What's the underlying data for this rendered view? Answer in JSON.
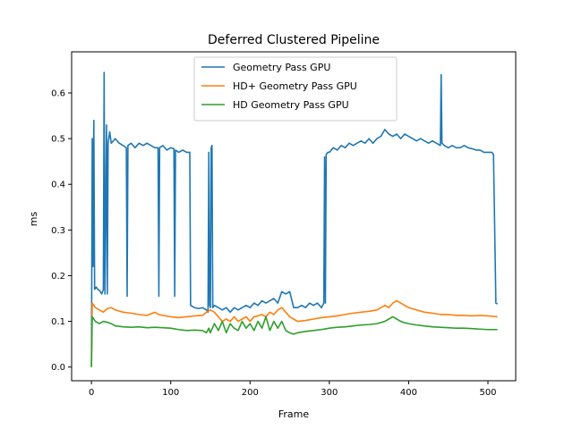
{
  "chart_data": {
    "type": "line",
    "title": "Deferred Clustered Pipeline",
    "xlabel": "Frame",
    "ylabel": "ms",
    "xlim": [
      -25,
      535
    ],
    "ylim": [
      -0.03,
      0.69
    ],
    "xticks": [
      0,
      100,
      200,
      300,
      400,
      500
    ],
    "yticks": [
      0.0,
      0.1,
      0.2,
      0.3,
      0.4,
      0.5,
      0.6
    ],
    "ytick_labels": [
      "0.0",
      "0.1",
      "0.2",
      "0.3",
      "0.4",
      "0.5",
      "0.6"
    ],
    "grid": false,
    "legend_position": "upper-center",
    "series": [
      {
        "name": "Geometry Pass GPU",
        "color": "#1f77b4",
        "points": [
          [
            0,
            0.0
          ],
          [
            1,
            0.5
          ],
          [
            2,
            0.22
          ],
          [
            3,
            0.54
          ],
          [
            4,
            0.17
          ],
          [
            6,
            0.175
          ],
          [
            8,
            0.17
          ],
          [
            10,
            0.168
          ],
          [
            13,
            0.16
          ],
          [
            15,
            0.17
          ],
          [
            16,
            0.645
          ],
          [
            17,
            0.16
          ],
          [
            19,
            0.53
          ],
          [
            20,
            0.16
          ],
          [
            21,
            0.49
          ],
          [
            23,
            0.515
          ],
          [
            25,
            0.49
          ],
          [
            30,
            0.5
          ],
          [
            35,
            0.49
          ],
          [
            40,
            0.485
          ],
          [
            44,
            0.48
          ],
          [
            45,
            0.155
          ],
          [
            46,
            0.485
          ],
          [
            50,
            0.49
          ],
          [
            55,
            0.48
          ],
          [
            60,
            0.49
          ],
          [
            65,
            0.485
          ],
          [
            70,
            0.49
          ],
          [
            75,
            0.485
          ],
          [
            80,
            0.48
          ],
          [
            84,
            0.48
          ],
          [
            85,
            0.155
          ],
          [
            86,
            0.48
          ],
          [
            90,
            0.485
          ],
          [
            95,
            0.475
          ],
          [
            100,
            0.48
          ],
          [
            104,
            0.478
          ],
          [
            105,
            0.155
          ],
          [
            106,
            0.475
          ],
          [
            110,
            0.47
          ],
          [
            115,
            0.475
          ],
          [
            120,
            0.47
          ],
          [
            124,
            0.47
          ],
          [
            125,
            0.135
          ],
          [
            130,
            0.13
          ],
          [
            135,
            0.128
          ],
          [
            140,
            0.13
          ],
          [
            145,
            0.125
          ],
          [
            147,
            0.12
          ],
          [
            148,
            0.47
          ],
          [
            149,
            0.135
          ],
          [
            150,
            0.13
          ],
          [
            151,
            0.48
          ],
          [
            152,
            0.485
          ],
          [
            153,
            0.13
          ],
          [
            155,
            0.135
          ],
          [
            160,
            0.13
          ],
          [
            165,
            0.125
          ],
          [
            170,
            0.13
          ],
          [
            175,
            0.12
          ],
          [
            180,
            0.13
          ],
          [
            185,
            0.125
          ],
          [
            190,
            0.13
          ],
          [
            195,
            0.135
          ],
          [
            200,
            0.13
          ],
          [
            205,
            0.14
          ],
          [
            210,
            0.135
          ],
          [
            215,
            0.145
          ],
          [
            220,
            0.14
          ],
          [
            225,
            0.145
          ],
          [
            230,
            0.15
          ],
          [
            235,
            0.14
          ],
          [
            240,
            0.165
          ],
          [
            245,
            0.16
          ],
          [
            250,
            0.165
          ],
          [
            255,
            0.13
          ],
          [
            260,
            0.13
          ],
          [
            265,
            0.135
          ],
          [
            270,
            0.13
          ],
          [
            275,
            0.14
          ],
          [
            280,
            0.135
          ],
          [
            285,
            0.14
          ],
          [
            290,
            0.13
          ],
          [
            293,
            0.14
          ],
          [
            294,
            0.46
          ],
          [
            295,
            0.14
          ],
          [
            296,
            0.465
          ],
          [
            298,
            0.47
          ],
          [
            300,
            0.47
          ],
          [
            305,
            0.48
          ],
          [
            310,
            0.475
          ],
          [
            315,
            0.485
          ],
          [
            320,
            0.48
          ],
          [
            325,
            0.49
          ],
          [
            330,
            0.485
          ],
          [
            335,
            0.49
          ],
          [
            340,
            0.495
          ],
          [
            345,
            0.49
          ],
          [
            350,
            0.5
          ],
          [
            355,
            0.49
          ],
          [
            360,
            0.5
          ],
          [
            365,
            0.505
          ],
          [
            370,
            0.52
          ],
          [
            375,
            0.51
          ],
          [
            380,
            0.505
          ],
          [
            385,
            0.51
          ],
          [
            390,
            0.5
          ],
          [
            395,
            0.51
          ],
          [
            400,
            0.505
          ],
          [
            405,
            0.5
          ],
          [
            410,
            0.495
          ],
          [
            415,
            0.5
          ],
          [
            420,
            0.495
          ],
          [
            425,
            0.49
          ],
          [
            430,
            0.495
          ],
          [
            435,
            0.49
          ],
          [
            440,
            0.485
          ],
          [
            441,
            0.64
          ],
          [
            442,
            0.49
          ],
          [
            445,
            0.485
          ],
          [
            450,
            0.48
          ],
          [
            455,
            0.485
          ],
          [
            460,
            0.48
          ],
          [
            465,
            0.48
          ],
          [
            470,
            0.485
          ],
          [
            475,
            0.48
          ],
          [
            480,
            0.478
          ],
          [
            485,
            0.475
          ],
          [
            490,
            0.475
          ],
          [
            495,
            0.47
          ],
          [
            500,
            0.47
          ],
          [
            505,
            0.47
          ],
          [
            507,
            0.465
          ],
          [
            510,
            0.14
          ],
          [
            512,
            0.138
          ]
        ]
      },
      {
        "name": "HD+ Geometry Pass GPU",
        "color": "#ff7f0e",
        "points": [
          [
            0,
            0.0
          ],
          [
            1,
            0.14
          ],
          [
            5,
            0.13
          ],
          [
            10,
            0.125
          ],
          [
            15,
            0.12
          ],
          [
            20,
            0.128
          ],
          [
            25,
            0.13
          ],
          [
            30,
            0.125
          ],
          [
            40,
            0.12
          ],
          [
            50,
            0.118
          ],
          [
            60,
            0.115
          ],
          [
            70,
            0.113
          ],
          [
            80,
            0.12
          ],
          [
            85,
            0.115
          ],
          [
            90,
            0.113
          ],
          [
            100,
            0.11
          ],
          [
            110,
            0.108
          ],
          [
            120,
            0.11
          ],
          [
            130,
            0.112
          ],
          [
            140,
            0.113
          ],
          [
            145,
            0.12
          ],
          [
            150,
            0.125
          ],
          [
            155,
            0.12
          ],
          [
            160,
            0.11
          ],
          [
            165,
            0.1
          ],
          [
            170,
            0.105
          ],
          [
            175,
            0.1
          ],
          [
            180,
            0.11
          ],
          [
            185,
            0.1
          ],
          [
            190,
            0.105
          ],
          [
            195,
            0.11
          ],
          [
            200,
            0.1
          ],
          [
            205,
            0.11
          ],
          [
            210,
            0.112
          ],
          [
            215,
            0.115
          ],
          [
            220,
            0.11
          ],
          [
            225,
            0.12
          ],
          [
            230,
            0.115
          ],
          [
            235,
            0.125
          ],
          [
            240,
            0.13
          ],
          [
            245,
            0.12
          ],
          [
            250,
            0.11
          ],
          [
            255,
            0.105
          ],
          [
            260,
            0.1
          ],
          [
            270,
            0.102
          ],
          [
            280,
            0.105
          ],
          [
            290,
            0.108
          ],
          [
            300,
            0.11
          ],
          [
            310,
            0.112
          ],
          [
            320,
            0.115
          ],
          [
            330,
            0.118
          ],
          [
            340,
            0.12
          ],
          [
            350,
            0.122
          ],
          [
            360,
            0.125
          ],
          [
            365,
            0.13
          ],
          [
            370,
            0.135
          ],
          [
            375,
            0.13
          ],
          [
            380,
            0.14
          ],
          [
            385,
            0.145
          ],
          [
            390,
            0.14
          ],
          [
            395,
            0.135
          ],
          [
            400,
            0.13
          ],
          [
            410,
            0.125
          ],
          [
            420,
            0.12
          ],
          [
            430,
            0.118
          ],
          [
            440,
            0.115
          ],
          [
            450,
            0.115
          ],
          [
            460,
            0.113
          ],
          [
            470,
            0.113
          ],
          [
            480,
            0.112
          ],
          [
            490,
            0.113
          ],
          [
            500,
            0.112
          ],
          [
            512,
            0.11
          ]
        ]
      },
      {
        "name": "HD Geometry Pass GPU",
        "color": "#2ca02c",
        "points": [
          [
            0,
            0.0
          ],
          [
            1,
            0.11
          ],
          [
            5,
            0.1
          ],
          [
            10,
            0.095
          ],
          [
            15,
            0.1
          ],
          [
            20,
            0.098
          ],
          [
            25,
            0.095
          ],
          [
            30,
            0.09
          ],
          [
            40,
            0.088
          ],
          [
            50,
            0.087
          ],
          [
            60,
            0.088
          ],
          [
            70,
            0.086
          ],
          [
            80,
            0.087
          ],
          [
            90,
            0.086
          ],
          [
            100,
            0.085
          ],
          [
            110,
            0.082
          ],
          [
            120,
            0.08
          ],
          [
            130,
            0.081
          ],
          [
            140,
            0.08
          ],
          [
            145,
            0.075
          ],
          [
            148,
            0.085
          ],
          [
            150,
            0.075
          ],
          [
            155,
            0.095
          ],
          [
            160,
            0.08
          ],
          [
            165,
            0.1
          ],
          [
            170,
            0.075
          ],
          [
            175,
            0.095
          ],
          [
            180,
            0.085
          ],
          [
            185,
            0.08
          ],
          [
            190,
            0.1
          ],
          [
            195,
            0.085
          ],
          [
            200,
            0.095
          ],
          [
            205,
            0.08
          ],
          [
            210,
            0.1
          ],
          [
            215,
            0.085
          ],
          [
            220,
            0.11
          ],
          [
            225,
            0.08
          ],
          [
            230,
            0.1
          ],
          [
            235,
            0.085
          ],
          [
            240,
            0.1
          ],
          [
            245,
            0.08
          ],
          [
            250,
            0.075
          ],
          [
            255,
            0.072
          ],
          [
            260,
            0.075
          ],
          [
            270,
            0.078
          ],
          [
            280,
            0.08
          ],
          [
            290,
            0.082
          ],
          [
            300,
            0.085
          ],
          [
            310,
            0.087
          ],
          [
            320,
            0.088
          ],
          [
            330,
            0.09
          ],
          [
            340,
            0.092
          ],
          [
            350,
            0.093
          ],
          [
            360,
            0.095
          ],
          [
            370,
            0.1
          ],
          [
            375,
            0.105
          ],
          [
            380,
            0.11
          ],
          [
            385,
            0.105
          ],
          [
            390,
            0.1
          ],
          [
            395,
            0.097
          ],
          [
            400,
            0.095
          ],
          [
            410,
            0.092
          ],
          [
            420,
            0.09
          ],
          [
            430,
            0.088
          ],
          [
            440,
            0.087
          ],
          [
            450,
            0.086
          ],
          [
            460,
            0.085
          ],
          [
            470,
            0.085
          ],
          [
            480,
            0.084
          ],
          [
            490,
            0.083
          ],
          [
            500,
            0.082
          ],
          [
            512,
            0.082
          ]
        ]
      }
    ]
  }
}
